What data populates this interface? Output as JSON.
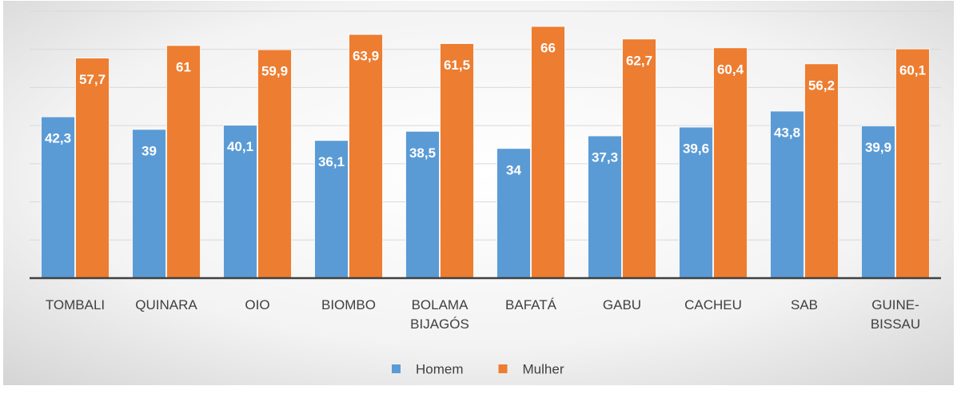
{
  "chart_data": {
    "type": "bar",
    "categories": [
      "TOMBALI",
      "QUINARA",
      "OIO",
      "BIOMBO",
      "BOLAMA\nBIJAGÓS",
      "BAFATÁ",
      "GABU",
      "CACHEU",
      "SAB",
      "GUINE-\nBISSAU"
    ],
    "series": [
      {
        "name": "Homem",
        "color": "#5b9bd5",
        "values": [
          42.3,
          39,
          40.1,
          36.1,
          38.5,
          34,
          37.3,
          39.6,
          43.8,
          39.9
        ],
        "value_labels": [
          "42,3",
          "39",
          "40,1",
          "36,1",
          "38,5",
          "34",
          "37,3",
          "39,6",
          "43,8",
          "39,9"
        ]
      },
      {
        "name": "Mulher",
        "color": "#ed7d31",
        "values": [
          57.7,
          61,
          59.9,
          63.9,
          61.5,
          66,
          62.7,
          60.4,
          56.2,
          60.1
        ],
        "value_labels": [
          "57,7",
          "61",
          "59,9",
          "63,9",
          "61,5",
          "66",
          "62,7",
          "60,4",
          "56,2",
          "60,1"
        ]
      }
    ],
    "ylim": [
      0,
      70
    ],
    "yticks": [
      0,
      10,
      20,
      30,
      40,
      50,
      60,
      70
    ],
    "grid": true,
    "legend": "bottom"
  }
}
